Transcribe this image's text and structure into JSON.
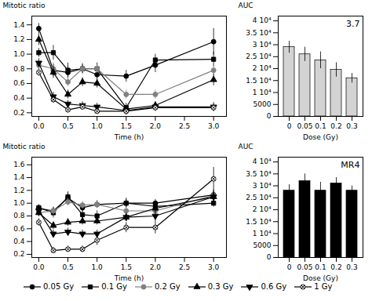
{
  "chart_data": [
    {
      "type": "line",
      "xlabel": "Time (h)",
      "ylabel": "Mitotic ratio",
      "x": [
        0,
        0.25,
        0.5,
        0.75,
        1.0,
        1.5,
        2.0,
        3.0
      ],
      "xlim": [
        -0.12,
        3.22
      ],
      "xticks": [
        {
          "value": 0,
          "label": "0.0"
        },
        0.5,
        {
          "value": 1,
          "label": "1.0"
        },
        1.5,
        {
          "value": 2,
          "label": "2.0"
        },
        2.5,
        {
          "value": 3,
          "label": "3.0"
        }
      ],
      "ylim": [
        0.15,
        1.52
      ],
      "yticks": [
        0.2,
        0.4,
        0.6,
        0.8,
        {
          "value": 1,
          "label": "1.0"
        },
        1.2,
        1.4
      ],
      "series": [
        {
          "name": "0.05 Gy",
          "color": "black",
          "marker": "circle",
          "values": [
            1.35,
            0.78,
            0.75,
            0.8,
            0.72,
            0.7,
            0.85,
            1.17
          ],
          "errors": [
            0.07,
            0.08,
            0.08,
            0.06,
            0.08,
            0.08,
            0.1,
            0.18
          ]
        },
        {
          "name": "0.1 Gy",
          "color": "black",
          "marker": "square",
          "values": [
            1.02,
            1.02,
            0.78,
            0.8,
            0.8,
            0.27,
            0.92,
            0.93
          ],
          "errors": [
            0.06,
            0.1,
            0.1,
            0.06,
            0.08,
            0.06,
            0.08,
            0.1
          ]
        },
        {
          "name": "0.2 Gy",
          "color": "gray",
          "marker": "circle",
          "values": [
            0.85,
            0.8,
            0.62,
            0.8,
            0.8,
            0.45,
            0.45,
            0.78
          ],
          "errors": [
            0.06,
            0.08,
            0.06,
            0.08,
            0.06,
            0.06,
            0.06,
            0.08
          ]
        },
        {
          "name": "0.3 Gy",
          "color": "black",
          "marker": "triangle",
          "values": [
            1.2,
            0.75,
            0.45,
            0.62,
            0.6,
            0.25,
            0.3,
            0.65
          ],
          "errors": [
            0.08,
            0.08,
            0.06,
            0.06,
            0.06,
            0.05,
            0.05,
            0.08
          ]
        },
        {
          "name": "0.6 Gy",
          "color": "black",
          "marker": "triangle-down",
          "values": [
            0.88,
            0.42,
            0.32,
            0.3,
            0.28,
            0.23,
            0.28,
            0.28
          ],
          "errors": [
            0.06,
            0.06,
            0.05,
            0.05,
            0.05,
            0.05,
            0.05,
            0.06
          ]
        },
        {
          "name": "1 Gy",
          "color": "black",
          "marker": "circle-x",
          "values": [
            0.75,
            0.38,
            0.24,
            0.28,
            0.22,
            0.22,
            0.27,
            0.27
          ],
          "errors": [
            0.05,
            0.05,
            0.04,
            0.04,
            0.04,
            0.04,
            0.04,
            0.05
          ]
        }
      ]
    },
    {
      "type": "bar",
      "xlabel": "Dose (Gy)",
      "ylabel": "AUC",
      "annotations": [
        "3.7"
      ],
      "categories": [
        "0",
        "0.05",
        "0.1",
        "0.2",
        "0.3"
      ],
      "values": [
        29000,
        26000,
        23500,
        19500,
        16000
      ],
      "errors": [
        2500,
        3000,
        3500,
        3000,
        2000
      ],
      "color": "lightgray",
      "ylim": [
        0,
        42000
      ],
      "yticks": [
        0,
        5000,
        {
          "value": 10000,
          "label": "1 10⁴"
        },
        {
          "value": 15000,
          "label": "1.5 10⁴"
        },
        {
          "value": 20000,
          "label": "2 10⁴"
        },
        {
          "value": 25000,
          "label": "2.5 10⁴"
        },
        {
          "value": 30000,
          "label": "3 10⁴"
        },
        {
          "value": 35000,
          "label": "3.5 10⁴"
        },
        {
          "value": 40000,
          "label": "4 10⁴"
        }
      ]
    },
    {
      "type": "line",
      "xlabel": "Time (h)",
      "ylabel": "Mitotic ratio",
      "legend": "bottom",
      "x": [
        0,
        0.25,
        0.5,
        0.75,
        1.0,
        1.5,
        2.0,
        3.0
      ],
      "xlim": [
        -0.12,
        3.22
      ],
      "xticks": [
        {
          "value": 0,
          "label": "0.0"
        },
        0.5,
        {
          "value": 1,
          "label": "1.0"
        },
        1.5,
        {
          "value": 2,
          "label": "2.0"
        },
        2.5,
        {
          "value": 3,
          "label": "3.0"
        }
      ],
      "ylim": [
        0.15,
        1.72
      ],
      "yticks": [
        0.2,
        0.4,
        0.6,
        0.8,
        {
          "value": 1,
          "label": "1.0"
        },
        1.2,
        1.4,
        1.6
      ],
      "series": [
        {
          "name": "0.05 Gy",
          "color": "black",
          "marker": "circle",
          "values": [
            0.92,
            0.88,
            1.08,
            0.93,
            0.98,
            1.0,
            1.0,
            1.13
          ],
          "errors": [
            0.05,
            0.06,
            0.08,
            0.06,
            0.06,
            0.06,
            0.06,
            0.08
          ]
        },
        {
          "name": "0.1 Gy",
          "color": "black",
          "marker": "square",
          "values": [
            0.93,
            0.85,
            1.1,
            0.82,
            0.8,
            1.0,
            0.95,
            1.0
          ],
          "errors": [
            0.05,
            0.08,
            0.08,
            0.08,
            0.08,
            0.08,
            0.06,
            0.06
          ]
        },
        {
          "name": "0.2 Gy",
          "color": "gray",
          "marker": "circle",
          "values": [
            0.85,
            0.88,
            1.02,
            0.97,
            0.98,
            0.88,
            0.88,
            1.12
          ],
          "errors": [
            0.05,
            0.06,
            0.06,
            0.06,
            0.06,
            0.06,
            0.06,
            0.08
          ]
        },
        {
          "name": "0.3 Gy",
          "color": "black",
          "marker": "triangle",
          "values": [
            0.85,
            0.65,
            0.7,
            0.72,
            0.72,
            0.78,
            0.92,
            1.1
          ],
          "errors": [
            0.06,
            0.06,
            0.06,
            0.06,
            0.06,
            0.06,
            0.06,
            0.08
          ]
        },
        {
          "name": "0.6 Gy",
          "color": "black",
          "marker": "triangle-down",
          "values": [
            0.88,
            0.52,
            0.55,
            0.52,
            0.52,
            0.78,
            0.8,
            1.1
          ],
          "errors": [
            0.06,
            0.06,
            0.06,
            0.06,
            0.06,
            0.06,
            0.08,
            0.1
          ]
        },
        {
          "name": "1 Gy",
          "color": "black",
          "marker": "circle-x",
          "values": [
            0.7,
            0.26,
            0.28,
            0.28,
            0.42,
            0.62,
            0.62,
            1.38
          ],
          "errors": [
            0.06,
            0.05,
            0.05,
            0.05,
            0.08,
            0.08,
            0.1,
            0.18
          ]
        }
      ]
    },
    {
      "type": "bar",
      "xlabel": "Dose (Gy)",
      "ylabel": "AUC",
      "annotations": [
        "MR4"
      ],
      "categories": [
        "0",
        "0.05",
        "0.1",
        "0.2",
        "0.3"
      ],
      "values": [
        28000,
        32000,
        28000,
        31000,
        28000
      ],
      "errors": [
        2500,
        3000,
        3500,
        2500,
        2000
      ],
      "color": "black",
      "ylim": [
        0,
        42000
      ],
      "yticks": [
        0,
        5000,
        {
          "value": 10000,
          "label": "1 10⁴"
        },
        {
          "value": 15000,
          "label": "1.5 10⁴"
        },
        {
          "value": 20000,
          "label": "2 10⁴"
        },
        {
          "value": 25000,
          "label": "2.5 10⁴"
        },
        {
          "value": 30000,
          "label": "3 10⁴"
        },
        {
          "value": 35000,
          "label": "3.5 10⁴"
        },
        {
          "value": 40000,
          "label": "4 10⁴"
        }
      ]
    }
  ]
}
